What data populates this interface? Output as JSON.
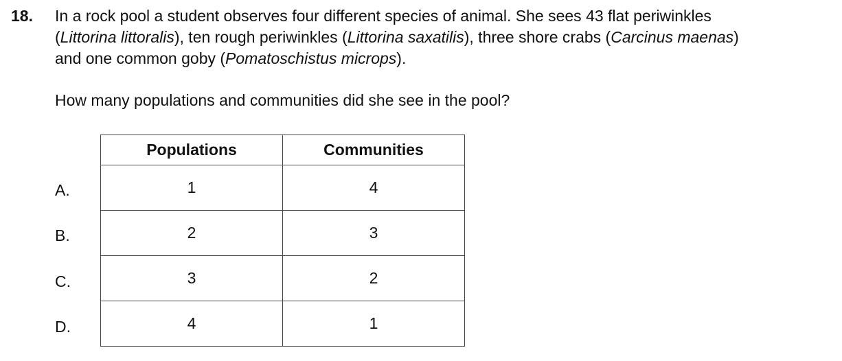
{
  "question_number": "18.",
  "stem": {
    "line1": {
      "text": "In a rock pool a student observes four different species of animal.  She sees 43 flat periwinkles"
    },
    "line2": {
      "t1": "(",
      "i1": "Littorina littoralis",
      "t2": "), ten rough periwinkles (",
      "i2": "Littorina saxatilis",
      "t3": "), three shore crabs (",
      "i3": "Carcinus maenas",
      "t4": ")"
    },
    "line3": {
      "t1": "and one common goby (",
      "i1": "Pomatoschistus microps",
      "t2": ")."
    }
  },
  "question": "How many populations and communities did she see in the pool?",
  "table": {
    "headers": [
      "Populations",
      "Communities"
    ],
    "rows": [
      {
        "label": "A.",
        "populations": "1",
        "communities": "4"
      },
      {
        "label": "B.",
        "populations": "2",
        "communities": "3"
      },
      {
        "label": "C.",
        "populations": "3",
        "communities": "2"
      },
      {
        "label": "D.",
        "populations": "4",
        "communities": "1"
      }
    ]
  }
}
